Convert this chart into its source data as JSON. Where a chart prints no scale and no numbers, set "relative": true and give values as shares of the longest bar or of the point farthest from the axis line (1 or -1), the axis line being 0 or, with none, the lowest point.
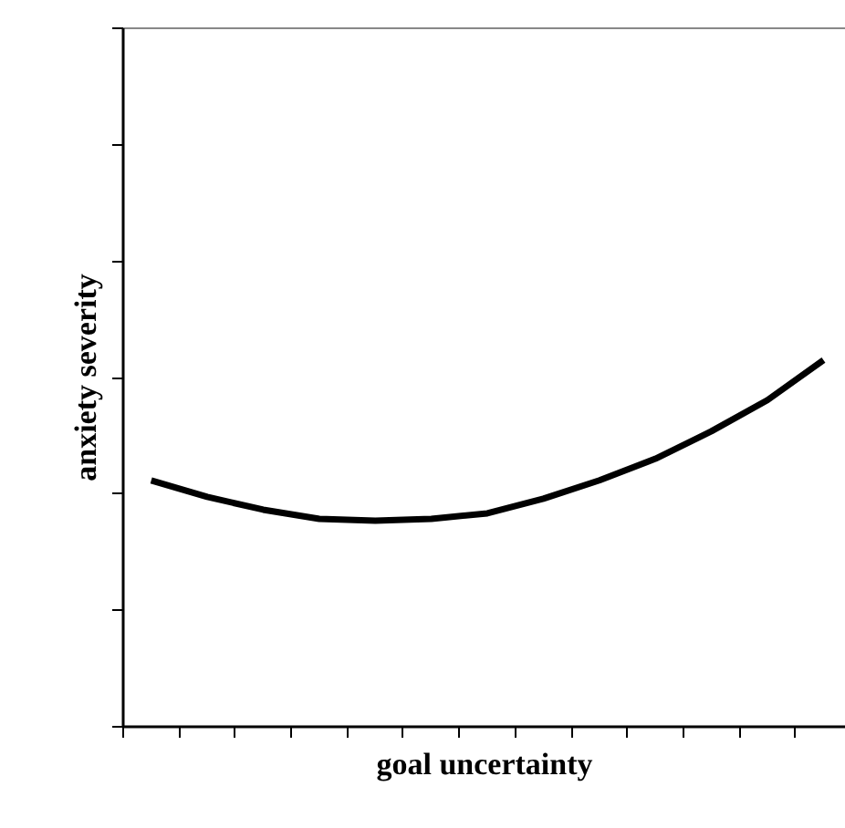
{
  "chart_data": {
    "type": "line",
    "xlabel": "goal uncertainty",
    "ylabel": "anxiety severity",
    "relative": true,
    "categories": [
      null,
      null,
      null,
      null,
      null,
      null,
      null,
      null,
      null,
      null,
      null,
      null,
      null
    ],
    "series": [
      {
        "color": "#000000",
        "values": [
          0.672,
          0.627,
          0.592,
          0.567,
          0.562,
          0.567,
          0.582,
          0.622,
          0.672,
          0.731,
          0.806,
          0.891,
          1.0
        ]
      }
    ]
  }
}
